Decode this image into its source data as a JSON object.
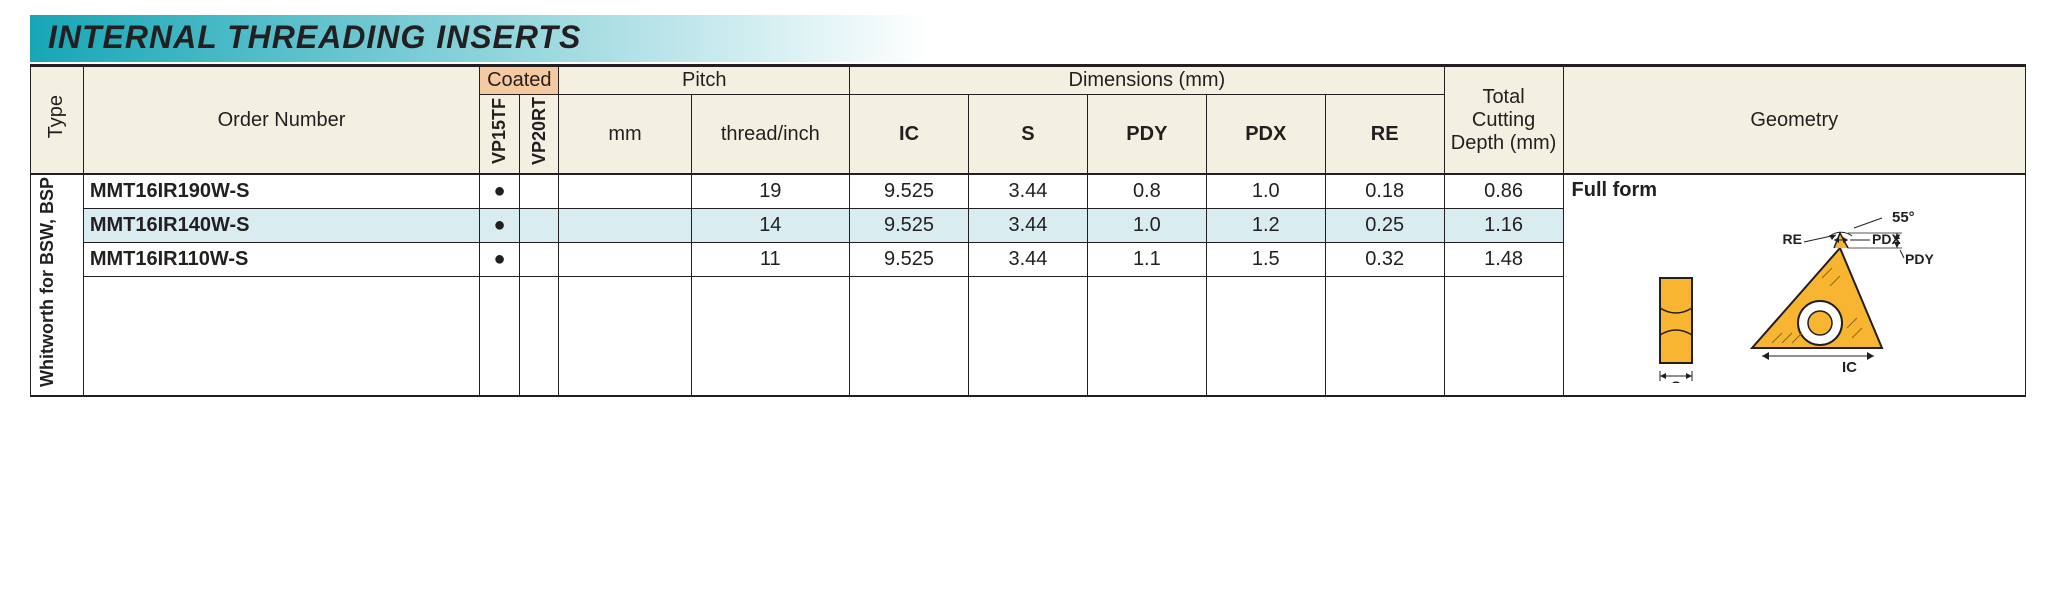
{
  "title": "INTERNAL THREADING INSERTS",
  "title_gradient": {
    "from": "#16a6b6",
    "to": "#ffffff"
  },
  "header_bg": "#f3f0e2",
  "coated_bg": "#f6caa0",
  "highlight_bg": "#d9edf1",
  "border_color": "#231f20",
  "insert_color": "#f7b531",
  "columns": {
    "type": "Type",
    "order": "Order Number",
    "coated": "Coated",
    "grades": [
      "VP15TF",
      "VP20RT"
    ],
    "pitch": "Pitch",
    "pitch_sub": [
      "mm",
      "thread/inch"
    ],
    "dims": "Dimensions (mm)",
    "dim_sub": [
      "IC",
      "S",
      "PDY",
      "PDX",
      "RE"
    ],
    "depth": "Total Cutting Depth (mm)",
    "geometry": "Geometry"
  },
  "col_widths": {
    "type": 40,
    "order": 300,
    "grade": 30,
    "pitch_mm": 100,
    "pitch_tpi": 120,
    "dim": 90,
    "depth": 90,
    "geometry": 350
  },
  "type_label": "Whitworth for BSW, BSP",
  "geom_form": "Full form",
  "geom_labels": {
    "angle": "55°",
    "pdx": "PDX",
    "re": "RE",
    "pdy": "PDY",
    "ic": "IC",
    "s": "S"
  },
  "rows": [
    {
      "order": "MMT16IR190W-S",
      "vp15tf": true,
      "vp20rt": false,
      "pitch_mm": "",
      "tpi": "19",
      "ic": "9.525",
      "s": "3.44",
      "pdy": "0.8",
      "pdx": "1.0",
      "re": "0.18",
      "depth": "0.86",
      "hl": false
    },
    {
      "order": "MMT16IR140W-S",
      "vp15tf": true,
      "vp20rt": false,
      "pitch_mm": "",
      "tpi": "14",
      "ic": "9.525",
      "s": "3.44",
      "pdy": "1.0",
      "pdx": "1.2",
      "re": "0.25",
      "depth": "1.16",
      "hl": true
    },
    {
      "order": "MMT16IR110W-S",
      "vp15tf": true,
      "vp20rt": false,
      "pitch_mm": "",
      "tpi": "11",
      "ic": "9.525",
      "s": "3.44",
      "pdy": "1.1",
      "pdx": "1.5",
      "re": "0.32",
      "depth": "1.48",
      "hl": false
    }
  ]
}
